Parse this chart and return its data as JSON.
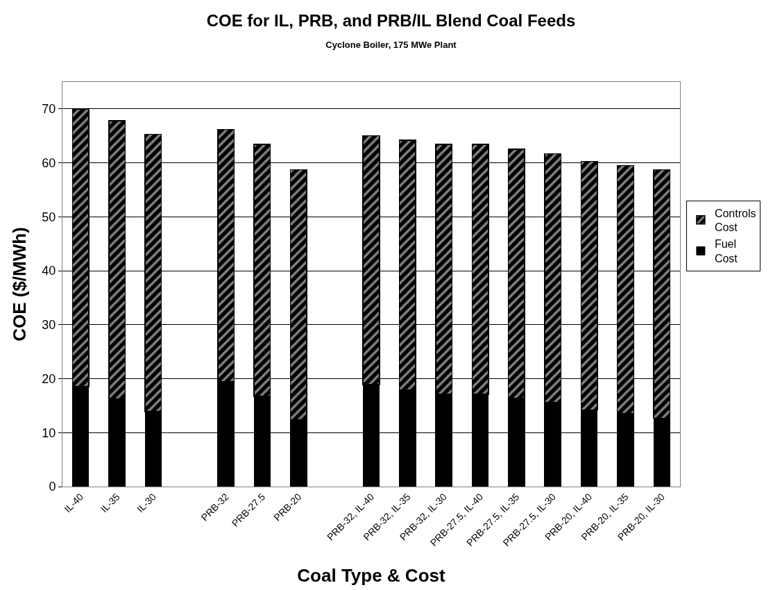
{
  "chart_data": {
    "type": "bar",
    "stacked": true,
    "title": "COE for IL, PRB, and PRB/IL Blend Coal Feeds",
    "subtitle": "Cyclone Boiler, 175 MWe Plant",
    "xlabel": "Coal Type & Cost",
    "ylabel": "COE ($/MWh)",
    "categories": [
      "IL-40",
      "IL-35",
      "IL-30",
      null,
      "PRB-32",
      "PRB-27.5",
      "PRB-20",
      null,
      "PRB-32, IL-40",
      "PRB-32, IL-35",
      "PRB-32, IL-30",
      "PRB-27.5, IL-40",
      "PRB-27.5, IL-35",
      "PRB-27.5, IL-30",
      "PRB-20, IL-40",
      "PRB-20, IL-35",
      "PRB-20, IL-30"
    ],
    "series": [
      {
        "name": "Fuel Cost",
        "color": "#000000",
        "values": [
          18.5,
          16.2,
          13.9,
          null,
          19.5,
          16.7,
          12.4,
          null,
          18.9,
          17.9,
          17.1,
          17.1,
          16.4,
          15.6,
          14.2,
          13.6,
          12.7
        ]
      },
      {
        "name": "Controls Cost",
        "color": "#000000",
        "values": [
          51.5,
          51.6,
          51.4,
          null,
          46.7,
          46.7,
          46.3,
          null,
          46.1,
          46.3,
          46.3,
          46.3,
          46.1,
          46.1,
          46.1,
          45.9,
          46.0
        ]
      }
    ],
    "ylim": [
      0,
      75
    ],
    "yticks": [
      0,
      10,
      20,
      30,
      40,
      50,
      60,
      70
    ],
    "grid": "y",
    "legend": "right"
  }
}
